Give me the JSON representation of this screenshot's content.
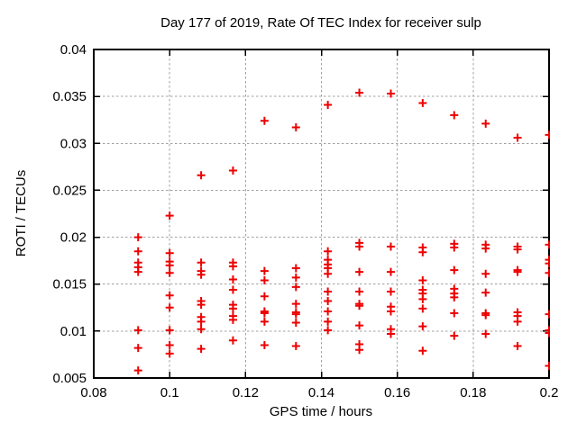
{
  "chart_data": {
    "type": "scatter",
    "title": "Day 177 of 2019, Rate Of TEC Index for receiver sulp",
    "xlabel": "GPS time / hours",
    "ylabel": "ROTI / TECUs",
    "xlim": [
      0.08,
      0.2
    ],
    "ylim": [
      0.005,
      0.04
    ],
    "xticks": [
      {
        "value": 0.08,
        "label": "0.08"
      },
      {
        "value": 0.1,
        "label": "0.1"
      },
      {
        "value": 0.12,
        "label": "0.12"
      },
      {
        "value": 0.14,
        "label": "0.14"
      },
      {
        "value": 0.16,
        "label": "0.16"
      },
      {
        "value": 0.18,
        "label": "0.18"
      },
      {
        "value": 0.2,
        "label": "0.2"
      }
    ],
    "yticks": [
      {
        "value": 0.005,
        "label": "0.005"
      },
      {
        "value": 0.01,
        "label": "0.01"
      },
      {
        "value": 0.015,
        "label": "0.015"
      },
      {
        "value": 0.02,
        "label": "0.02"
      },
      {
        "value": 0.025,
        "label": "0.025"
      },
      {
        "value": 0.03,
        "label": "0.03"
      },
      {
        "value": 0.035,
        "label": "0.035"
      },
      {
        "value": 0.04,
        "label": "0.04"
      }
    ],
    "grid": true,
    "legend": "none",
    "marker": {
      "shape": "plus",
      "size": 9,
      "color": "#ee0000"
    },
    "axis_color": "#000000",
    "grid_color": "#a0a0a0",
    "series": [
      {
        "name": "ROTI",
        "columns": [
          {
            "x": 0.0917,
            "y": [
              0.02,
              0.0185,
              0.0173,
              0.0168,
              0.0163,
              0.0101,
              0.0082,
              0.0058
            ]
          },
          {
            "x": 0.1,
            "y": [
              0.0223,
              0.0183,
              0.0174,
              0.017,
              0.0162,
              0.0138,
              0.0125,
              0.0101,
              0.0085,
              0.0076
            ]
          },
          {
            "x": 0.1083,
            "y": [
              0.0266,
              0.0173,
              0.0164,
              0.016,
              0.0132,
              0.0128,
              0.0115,
              0.011,
              0.0102,
              0.0081
            ]
          },
          {
            "x": 0.1167,
            "y": [
              0.0271,
              0.0173,
              0.0169,
              0.0155,
              0.0144,
              0.0128,
              0.0124,
              0.0116,
              0.0112,
              0.009
            ]
          },
          {
            "x": 0.125,
            "y": [
              0.0324,
              0.0164,
              0.0154,
              0.0137,
              0.0121,
              0.0119,
              0.011,
              0.0085
            ]
          },
          {
            "x": 0.1333,
            "y": [
              0.0317,
              0.0167,
              0.0157,
              0.0147,
              0.0129,
              0.012,
              0.0118,
              0.0109,
              0.0084
            ]
          },
          {
            "x": 0.1417,
            "y": [
              0.0341,
              0.0185,
              0.0176,
              0.0171,
              0.0167,
              0.0161,
              0.0142,
              0.0132,
              0.0121,
              0.011,
              0.0101
            ]
          },
          {
            "x": 0.15,
            "y": [
              0.0354,
              0.0194,
              0.019,
              0.0163,
              0.0142,
              0.0129,
              0.0127,
              0.0106,
              0.0086,
              0.008
            ]
          },
          {
            "x": 0.1583,
            "y": [
              0.0353,
              0.019,
              0.0163,
              0.0142,
              0.0126,
              0.0121,
              0.0102,
              0.0097
            ]
          },
          {
            "x": 0.1667,
            "y": [
              0.0343,
              0.0189,
              0.0184,
              0.0154,
              0.0144,
              0.014,
              0.0134,
              0.0124,
              0.0105,
              0.0079
            ]
          },
          {
            "x": 0.175,
            "y": [
              0.033,
              0.0193,
              0.0189,
              0.0165,
              0.0145,
              0.014,
              0.0136,
              0.0119,
              0.0095
            ]
          },
          {
            "x": 0.1833,
            "y": [
              0.0321,
              0.0192,
              0.0188,
              0.0161,
              0.0141,
              0.0119,
              0.0117,
              0.0097
            ]
          },
          {
            "x": 0.1917,
            "y": [
              0.0306,
              0.019,
              0.0187,
              0.0165,
              0.0163,
              0.012,
              0.0116,
              0.011,
              0.0084
            ]
          },
          {
            "x": 0.2,
            "y": [
              0.0309,
              0.0192,
              0.0176,
              0.0172,
              0.0162,
              0.0118,
              0.0101,
              0.0098,
              0.0063
            ]
          }
        ]
      }
    ]
  }
}
